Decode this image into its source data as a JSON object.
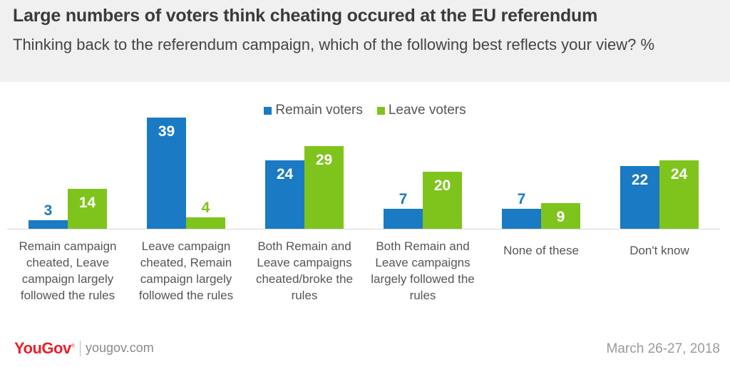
{
  "header": {
    "title": "Large numbers of voters think cheating occured at the EU referendum",
    "subtitle": "Thinking back to the referendum campaign, which of the following best reflects your view? %"
  },
  "colors": {
    "remain": "#1a7ac4",
    "leave": "#7fc41d",
    "header_bg": "#f0f0f0"
  },
  "chart_data": {
    "type": "bar",
    "title": "Large numbers of voters think cheating occured at the EU referendum",
    "subtitle": "Thinking back to the referendum campaign, which of the following best reflects your view? %",
    "categories": [
      "Remain campaign cheated, Leave campaign largely followed the rules",
      "Leave campaign cheated, Remain campaign largely followed the rules",
      "Both Remain and Leave campaigns cheated/broke the rules",
      "Both Remain and Leave campaigns largely followed the rules",
      "None of these",
      "Don't know"
    ],
    "series": [
      {
        "name": "Remain voters",
        "values": [
          3,
          39,
          24,
          7,
          7,
          22
        ]
      },
      {
        "name": "Leave voters",
        "values": [
          14,
          4,
          29,
          20,
          9,
          24
        ]
      }
    ],
    "legend": "top-center",
    "grid": false,
    "ylim": [
      0,
      40
    ]
  },
  "footer": {
    "logo_text": "YouGov",
    "logo_mark": "®",
    "site": "yougov.com",
    "date": "March 26-27, 2018"
  }
}
